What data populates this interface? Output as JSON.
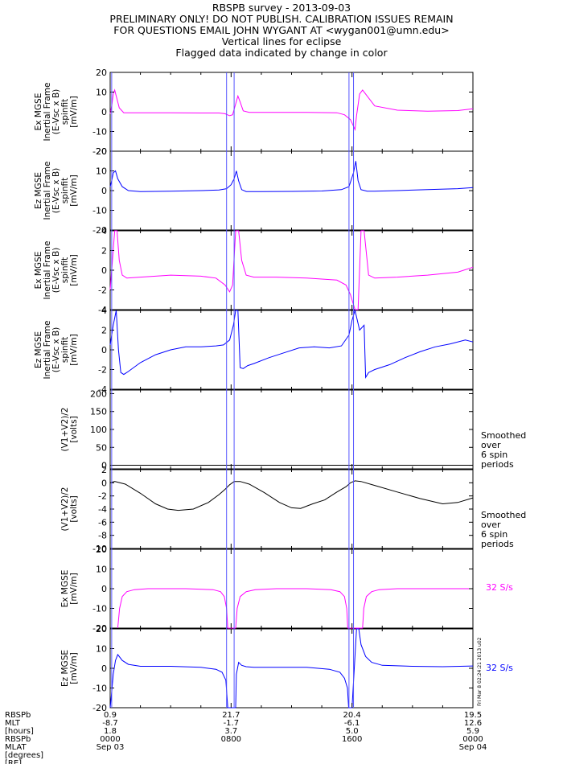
{
  "header": {
    "title": "RBSPB survey - 2013-09-03",
    "line2": "PRELIMINARY ONLY! DO NOT PUBLISH. CALIBRATION ISSUES REMAIN",
    "line3": "FOR QUESTIONS EMAIL JOHN WYGANT AT <wygan001@umn.edu>",
    "line4": "Vertical lines for eclipse",
    "line5": "Flagged data indicated by change in color"
  },
  "colors": {
    "magenta": "#ff00ff",
    "blue": "#0000ff",
    "black": "#000000",
    "eclipse": "#5555ff"
  },
  "eclipse_lines_hours": [
    0.1,
    7.7,
    8.2,
    15.8,
    16.1
  ],
  "side_labels": {
    "smoothed": [
      "Smoothed",
      "over",
      "6 spin",
      "periods"
    ],
    "rate": "32 S/s",
    "stamp": "Fri Mar  8 02:24:21 2013 u02"
  },
  "footer": {
    "row_labels": [
      "RBSPb",
      "MLT",
      "[hours]",
      "RBSPb",
      "MLAT",
      "[degrees]",
      "[RE]"
    ],
    "ticks": [
      {
        "hour": 0,
        "values": [
          "0.9",
          "-8.7",
          "1.8",
          "0000",
          "Sep 03"
        ]
      },
      {
        "hour": 8,
        "values": [
          "21.7",
          "-1.7",
          "3.7",
          "0800",
          ""
        ]
      },
      {
        "hour": 16,
        "values": [
          "20.4",
          "-6.1",
          "5.0",
          "1600",
          ""
        ]
      },
      {
        "hour": 24,
        "values": [
          "19.5",
          "12.6",
          "5.9",
          "0000",
          "Sep 04"
        ]
      }
    ]
  },
  "chart_data": [
    {
      "type": "line",
      "ylabel": [
        "Ex MGSE",
        "Inertial Frame",
        "(E-Vsc x B)",
        "spinfit",
        "[mV/m]"
      ],
      "ylim": [
        -20,
        20
      ],
      "yticks": [
        -20,
        -10,
        0,
        10,
        20
      ],
      "color": "#ff00ff",
      "x_hours": [
        0,
        0.1,
        0.2,
        0.3,
        0.4,
        0.6,
        0.9,
        2,
        4,
        6,
        7.2,
        7.6,
        7.9,
        8.1,
        8.3,
        8.45,
        8.6,
        8.8,
        9.2,
        11,
        13,
        15,
        15.5,
        15.9,
        16.2,
        16.3,
        16.5,
        16.7,
        17,
        17.5,
        19,
        21,
        23,
        24
      ],
      "values": [
        -1,
        3,
        9,
        11,
        8,
        2,
        -0.5,
        -0.5,
        -0.5,
        -0.6,
        -0.6,
        -1,
        -2,
        -1.5,
        4,
        8,
        5,
        0.5,
        -0.3,
        -0.3,
        -0.3,
        -0.5,
        -1.5,
        -4,
        -9,
        -2,
        9,
        11,
        8,
        3,
        0.8,
        0.3,
        0.6,
        1.5
      ]
    },
    {
      "type": "line",
      "ylabel": [
        "Ez MGSE",
        "Inertial Frame",
        "(E-Vsc x B)",
        "spinfit",
        "[mV/m]"
      ],
      "ylim": [
        -20,
        20
      ],
      "yticks": [
        -20,
        -10,
        0,
        10,
        20
      ],
      "color": "#0000ff",
      "x_hours": [
        0,
        0.1,
        0.2,
        0.35,
        0.5,
        0.8,
        1.2,
        2,
        4,
        6,
        7.2,
        7.7,
        8.0,
        8.2,
        8.35,
        8.5,
        8.7,
        9.0,
        10,
        12,
        14,
        15.3,
        15.8,
        16.1,
        16.25,
        16.4,
        16.6,
        17,
        17.5,
        19,
        21,
        23,
        24
      ],
      "values": [
        2,
        5,
        9,
        10,
        6,
        2,
        0,
        -0.5,
        -0.3,
        0,
        0.3,
        1,
        3,
        6,
        10,
        5,
        0.5,
        -0.5,
        -0.5,
        -0.4,
        -0.2,
        0.5,
        2,
        9,
        15,
        5,
        0.5,
        -0.3,
        -0.3,
        0,
        0.5,
        1,
        1.5
      ]
    },
    {
      "type": "line",
      "ylabel": [
        "Ex MGSE",
        "Inertial Frame",
        "(E-Vsc x B)",
        "spinfit",
        "[mV/m]"
      ],
      "ylim": [
        -4,
        4
      ],
      "yticks": [
        -4,
        -2,
        0,
        2,
        4
      ],
      "color": "#ff00ff",
      "x_hours": [
        0,
        0.15,
        0.3,
        0.45,
        0.6,
        0.8,
        1.1,
        2,
        4,
        6,
        7.0,
        7.6,
        7.9,
        8.1,
        8.3,
        8.5,
        8.7,
        9.0,
        9.5,
        11,
        13,
        15,
        15.6,
        15.9,
        16.2,
        16.4,
        16.6,
        16.8,
        17.1,
        17.5,
        19,
        21,
        23,
        24
      ],
      "values": [
        -2,
        1,
        4,
        4,
        1,
        -0.5,
        -0.8,
        -0.7,
        -0.5,
        -0.6,
        -0.8,
        -1.5,
        -2.2,
        -1.5,
        4,
        4,
        1,
        -0.5,
        -0.7,
        -0.7,
        -0.8,
        -1.0,
        -1.5,
        -2.5,
        -4,
        -4,
        4,
        4,
        -0.5,
        -0.8,
        -0.7,
        -0.5,
        -0.2,
        0.3
      ]
    },
    {
      "type": "line",
      "ylabel": [
        "Ez MGSE",
        "Inertial Frame",
        "(E-Vsc x B)",
        "spinfit",
        "[mV/m]"
      ],
      "ylim": [
        -4,
        4
      ],
      "yticks": [
        -4,
        -2,
        0,
        2,
        4
      ],
      "color": "#0000ff",
      "x_hours": [
        0,
        0.2,
        0.4,
        0.55,
        0.7,
        0.9,
        1.2,
        2,
        3,
        4,
        5,
        6,
        7,
        7.5,
        7.9,
        8.15,
        8.3,
        8.45,
        8.6,
        8.8,
        9.1,
        9.5,
        10.5,
        11.5,
        12.5,
        13.5,
        14.5,
        15.3,
        15.8,
        16.0,
        16.2,
        16.5,
        16.8,
        16.9,
        17.1,
        17.5,
        18.5,
        19.5,
        20.5,
        21.5,
        22.5,
        23.5,
        24
      ],
      "values": [
        0.5,
        2.5,
        4,
        0,
        -2.3,
        -2.5,
        -2.2,
        -1.3,
        -0.5,
        0,
        0.3,
        0.3,
        0.4,
        0.5,
        1.0,
        2.5,
        4,
        4,
        -1.8,
        -1.9,
        -1.6,
        -1.4,
        -0.8,
        -0.3,
        0.2,
        0.3,
        0.2,
        0.4,
        1.5,
        3,
        4,
        2,
        2.5,
        -2.8,
        -2.3,
        -2.0,
        -1.5,
        -0.8,
        -0.2,
        0.3,
        0.6,
        1.0,
        0.8
      ]
    },
    {
      "type": "line",
      "ylabel": [
        "(V1+V2)/2",
        "[volts]"
      ],
      "ylim": [
        -10,
        210
      ],
      "yticks": [
        0,
        50,
        100,
        150,
        200
      ],
      "color": "#000000",
      "x_hours": [
        0,
        4,
        8,
        12,
        16,
        20,
        24
      ],
      "values": [
        0,
        0,
        0,
        0,
        0,
        0,
        0
      ]
    },
    {
      "type": "line",
      "ylabel": [
        "(V1+V2)/2",
        "[volts]"
      ],
      "ylim": [
        -10,
        2
      ],
      "yticks": [
        -10,
        -8,
        -6,
        -4,
        -2,
        0,
        2
      ],
      "color": "#000000",
      "x_hours": [
        0,
        0.3,
        1.0,
        2.0,
        3.0,
        3.8,
        4.5,
        5.5,
        6.5,
        7.2,
        7.6,
        7.9,
        8.2,
        8.6,
        9.2,
        10.2,
        11.2,
        12.0,
        12.6,
        13.4,
        14.2,
        15.0,
        15.6,
        15.9,
        16.2,
        16.6,
        17.5,
        19.0,
        20.5,
        22.0,
        23.0,
        24
      ],
      "values": [
        0,
        0.2,
        -0.2,
        -1.6,
        -3.2,
        -4.0,
        -4.2,
        -4.0,
        -3.0,
        -1.8,
        -1.0,
        -0.3,
        0.2,
        0.2,
        -0.2,
        -1.5,
        -3.0,
        -3.8,
        -3.9,
        -3.2,
        -2.6,
        -1.4,
        -0.6,
        0,
        0.3,
        0.2,
        -0.4,
        -1.4,
        -2.4,
        -3.2,
        -3.0,
        -2.3
      ]
    },
    {
      "type": "line",
      "ylabel": [
        "Ex MGSE",
        "[mV/m]"
      ],
      "ylim": [
        -20,
        20
      ],
      "yticks": [
        -20,
        -10,
        0,
        10,
        20
      ],
      "color": "#ff00ff",
      "x_hours": [
        0.5,
        0.62,
        0.8,
        1.1,
        1.6,
        2.5,
        5,
        6.8,
        7.3,
        7.55,
        7.7,
        7.78,
        8.3,
        8.4,
        8.6,
        9.0,
        9.6,
        11,
        13,
        14.6,
        15.2,
        15.5,
        15.65,
        15.72,
        16.7,
        16.78,
        16.95,
        17.3,
        17.8,
        19,
        21,
        23,
        24
      ],
      "values": [
        -20,
        -10,
        -4,
        -1.5,
        -0.5,
        0,
        0,
        -0.5,
        -1.5,
        -4,
        -10,
        -20,
        -20,
        -10,
        -4,
        -1.5,
        -0.5,
        0,
        0,
        -0.5,
        -1.5,
        -4,
        -10,
        -20,
        -20,
        -10,
        -4,
        -1.5,
        -0.5,
        0,
        0,
        0,
        0
      ]
    },
    {
      "type": "line",
      "ylabel": [
        "Ez MGSE",
        "[mV/m]"
      ],
      "ylim": [
        -20,
        20
      ],
      "yticks": [
        -20,
        -10,
        0,
        10,
        20
      ],
      "color": "#0000ff",
      "x_hours": [
        0,
        0.1,
        0.2,
        0.35,
        0.5,
        0.8,
        1.2,
        2,
        4,
        6,
        7.0,
        7.4,
        7.65,
        7.78,
        8.3,
        8.35,
        8.5,
        8.7,
        9.0,
        9.5,
        11,
        13,
        14.5,
        15.2,
        15.5,
        15.7,
        15.78,
        16.0,
        16.3,
        16.45,
        16.6,
        16.9,
        17.3,
        18,
        20,
        22,
        24
      ],
      "values": [
        -20,
        -12,
        -3,
        4,
        7,
        4,
        2,
        1,
        1,
        0.5,
        -0.5,
        -2,
        -6,
        -20,
        -20,
        -3,
        3,
        1.5,
        0.8,
        0.5,
        0.5,
        0.5,
        -0.5,
        -2,
        -5,
        -10,
        -20,
        -20,
        20,
        20,
        12,
        6,
        3,
        1.5,
        1,
        0.8,
        1.2
      ]
    }
  ]
}
